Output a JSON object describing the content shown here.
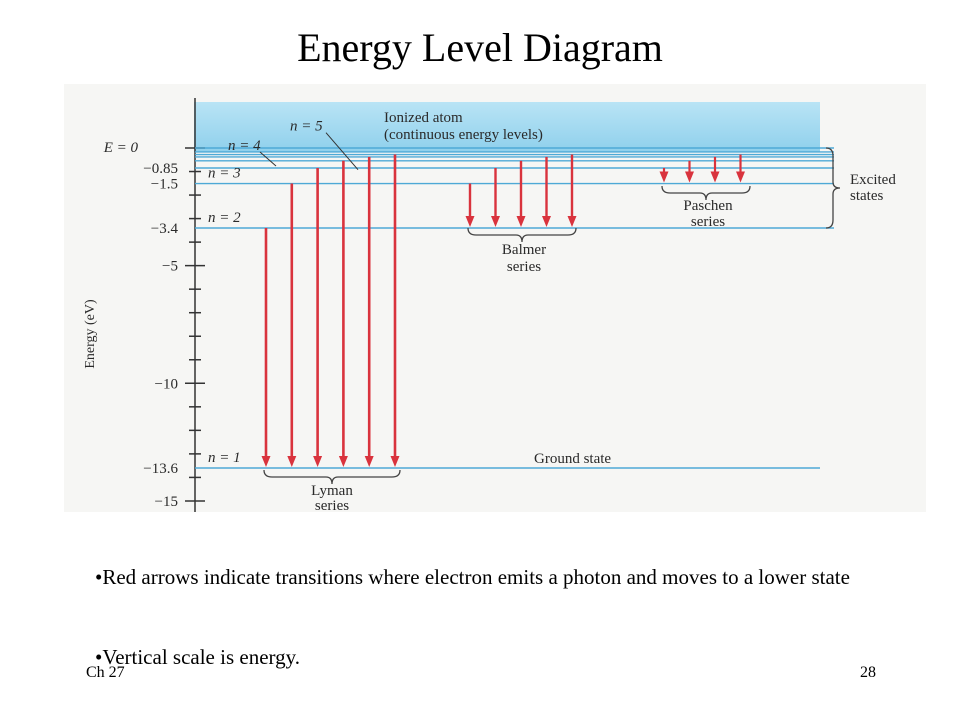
{
  "title": "Energy Level Diagram",
  "diagram": {
    "axis": {
      "label": "Energy (eV)",
      "range": [
        -15.8,
        0.9
      ],
      "e_zero_label": "E = 0",
      "tick_labels": [
        {
          "value": -0.85,
          "text": "−0.85"
        },
        {
          "value": -1.5,
          "text": "−1.5"
        },
        {
          "value": -3.4,
          "text": "−3.4"
        },
        {
          "value": -5,
          "text": "−5"
        },
        {
          "value": -10,
          "text": "−10"
        },
        {
          "value": -13.6,
          "text": "−13.6"
        },
        {
          "value": -15,
          "text": "−15"
        }
      ]
    },
    "levels": [
      {
        "n": 1,
        "energy": -13.6,
        "label": "n = 1"
      },
      {
        "n": 2,
        "energy": -3.4,
        "label": "n = 2"
      },
      {
        "n": 3,
        "energy": -1.5,
        "label": "n = 3"
      },
      {
        "n": 4,
        "energy": -0.85,
        "label": "n = 4"
      },
      {
        "n": 5,
        "energy": -0.54,
        "label": "n = 5"
      }
    ],
    "ionized_label_line1": "Ionized atom",
    "ionized_label_line2": "(continuous energy levels)",
    "ground_state_label": "Ground state",
    "excited_states_line1": "Excited",
    "excited_states_line2": "states",
    "series": [
      {
        "name_line1": "Lyman",
        "name_line2": "series",
        "final_n": 1,
        "from_n": [
          2,
          3,
          4,
          5,
          6,
          7
        ]
      },
      {
        "name_line1": "Balmer",
        "name_line2": "series",
        "final_n": 2,
        "from_n": [
          3,
          4,
          5,
          6,
          7
        ]
      },
      {
        "name_line1": "Paschen",
        "name_line2": "series",
        "final_n": 3,
        "from_n": [
          4,
          5,
          6,
          7
        ]
      }
    ],
    "colors": {
      "arrow": "#d9333d",
      "level_line": "#4ea9d6",
      "ionized_band": "#a9dcf0",
      "axis": "#333333"
    }
  },
  "bullets": [
    "•Red arrows indicate transitions where electron emits a photon and moves to a lower state",
    "•Vertical scale is energy."
  ],
  "footer": {
    "left": "Ch 27",
    "right": "28"
  }
}
